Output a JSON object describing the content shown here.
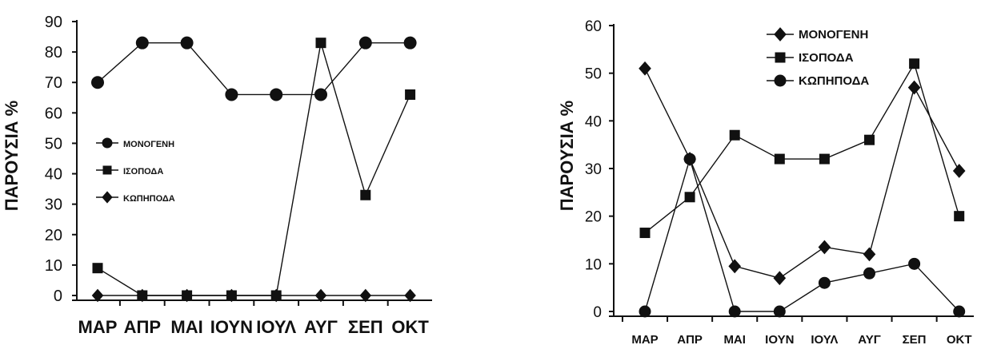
{
  "chart_data": [
    {
      "type": "line",
      "categories": [
        "ΜΑΡ",
        "ΑΠΡ",
        "ΜΑΙ",
        "ΙΟΥΝ",
        "ΙΟΥΛ",
        "ΑΥΓ",
        "ΣΕΠ",
        "ΟΚΤ"
      ],
      "ylabel": "ΠΑΡΟΥΣΙΑ %",
      "ylim": [
        0,
        90
      ],
      "yticks": [
        0,
        10,
        20,
        30,
        40,
        50,
        60,
        70,
        80,
        90
      ],
      "grid": false,
      "legend_position": "center-left",
      "series": [
        {
          "name": "ΜΟΝΟΓΕΝΗ",
          "marker": "circle",
          "values": [
            70,
            83,
            83,
            66,
            66,
            66,
            83,
            83
          ]
        },
        {
          "name": "ΙΣΟΠΟΔΑ",
          "marker": "square",
          "values": [
            9,
            0,
            0,
            0,
            0,
            83,
            33,
            66
          ]
        },
        {
          "name": "ΚΩΠΗΠΟΔΑ",
          "marker": "diamond",
          "values": [
            0,
            0,
            0,
            0,
            0,
            0,
            0,
            0
          ]
        }
      ]
    },
    {
      "type": "line",
      "categories": [
        "ΜΑΡ",
        "ΑΠΡ",
        "ΜΑΙ",
        "ΙΟΥΝ",
        "ΙΟΥΛ",
        "ΑΥΓ",
        "ΣΕΠ",
        "ΟΚΤ"
      ],
      "ylabel": "ΠΑΡΟΥΣΙΑ %",
      "ylim": [
        0,
        60
      ],
      "yticks": [
        0,
        10,
        20,
        30,
        40,
        50,
        60
      ],
      "grid": false,
      "legend_position": "top-center",
      "series": [
        {
          "name": "ΜΟΝΟΓΕΝΗ",
          "marker": "diamond",
          "values": [
            51,
            32,
            9.5,
            7,
            13.5,
            12,
            47,
            29.5
          ]
        },
        {
          "name": "ΙΣΟΠΟΔΑ",
          "marker": "square",
          "values": [
            16.5,
            24,
            37,
            32,
            32,
            36,
            52,
            20
          ]
        },
        {
          "name": "ΚΩΠΗΠΟΔΑ",
          "marker": "circle",
          "values": [
            0,
            32,
            0,
            0,
            6,
            8,
            10,
            0
          ]
        }
      ]
    }
  ]
}
